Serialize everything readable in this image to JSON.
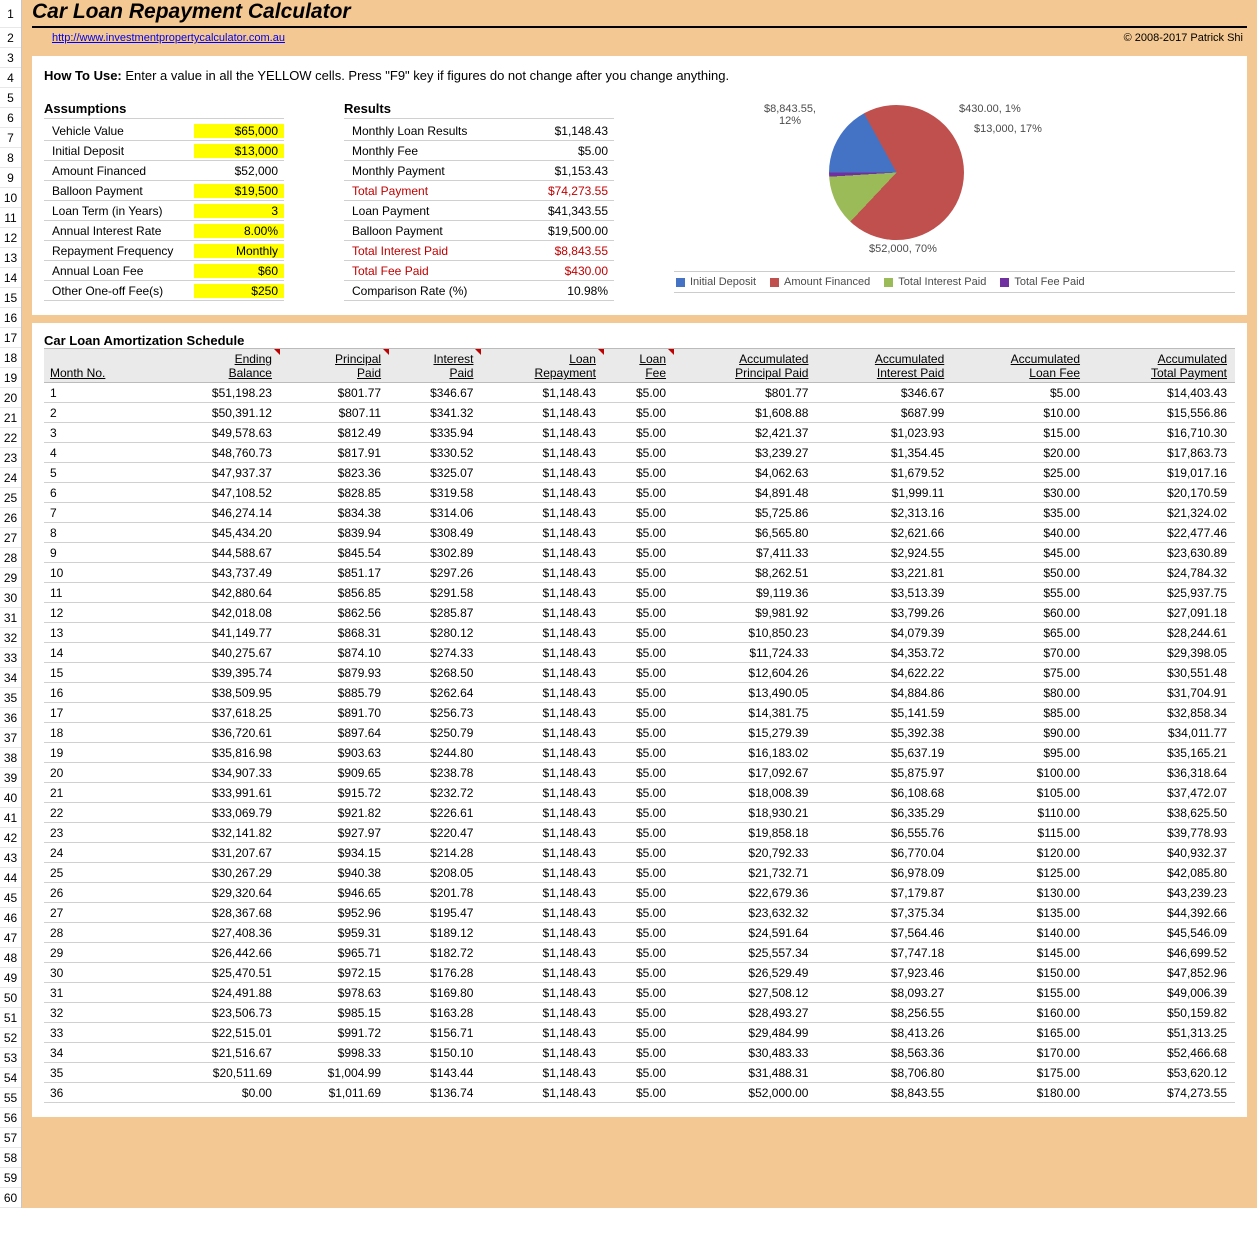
{
  "rownums_start": 1,
  "rownums_end": 60,
  "title": "Car Loan Repayment Calculator",
  "link_text": "http://www.investmentpropertycalculator.com.au",
  "copyright": "© 2008-2017 Patrick Shi",
  "howto_label": "How To Use:",
  "howto_text": " Enter a value in all the YELLOW cells. Press \"F9\" key if figures do not change after you change anything.",
  "assumptions_title": "Assumptions",
  "assumptions": [
    {
      "label": "Vehicle Value",
      "value": "$65,000",
      "yellow": true
    },
    {
      "label": "Initial Deposit",
      "value": "$13,000",
      "yellow": true
    },
    {
      "label": "Amount Financed",
      "value": "$52,000",
      "yellow": false
    },
    {
      "label": "Balloon Payment",
      "value": "$19,500",
      "yellow": true
    },
    {
      "label": "Loan Term (in Years)",
      "value": "3",
      "yellow": true
    },
    {
      "label": "Annual Interest Rate",
      "value": "8.00%",
      "yellow": true
    },
    {
      "label": "Repayment Frequency",
      "value": "Monthly",
      "yellow": true
    },
    {
      "label": "Annual Loan Fee",
      "value": "$60",
      "yellow": true
    },
    {
      "label": "Other One-off Fee(s)",
      "value": "$250",
      "yellow": true
    }
  ],
  "results_title": "Results",
  "results": [
    {
      "label": "Monthly Loan Results",
      "value": "$1,148.43",
      "red": false
    },
    {
      "label": "Monthly Fee",
      "value": "$5.00",
      "red": false
    },
    {
      "label": "Monthly Payment",
      "value": "$1,153.43",
      "red": false
    },
    {
      "label": "Total Payment",
      "value": "$74,273.55",
      "red": true
    },
    {
      "label": "Loan Payment",
      "value": "$41,343.55",
      "red": false
    },
    {
      "label": "Balloon Payment",
      "value": "$19,500.00",
      "red": false
    },
    {
      "label": "Total Interest Paid",
      "value": "$8,843.55",
      "red": true
    },
    {
      "label": "Total Fee Paid",
      "value": "$430.00",
      "red": true
    },
    {
      "label": "Comparison Rate (%)",
      "value": "10.98%",
      "red": false
    }
  ],
  "pie": {
    "slices": [
      {
        "label": "Initial Deposit",
        "value": "$13,000",
        "pct": "17%",
        "color": "#4472c4"
      },
      {
        "label": "Amount Financed",
        "value": "$52,000",
        "pct": "70%",
        "color": "#c0504d"
      },
      {
        "label": "Total Interest Paid",
        "value": "$8,843.55",
        "pct": "12%",
        "color": "#9bbb59"
      },
      {
        "label": "Total Fee Paid",
        "value": "$430.00",
        "pct": "1%",
        "color": "#7030a0"
      }
    ],
    "angles": "#4472c4 0deg 61.2deg, #c0504d 61.2deg 313.2deg, #9bbb59 313.2deg 356.4deg, #7030a0 356.4deg 360deg",
    "legend_title": ""
  },
  "callouts": {
    "c1": {
      "text1": "$430.00, 1%"
    },
    "c2": {
      "text1": "$13,000, 17%"
    },
    "c3": {
      "text1": "$8,843.55,",
      "text2": "12%"
    },
    "c4": {
      "text1": "$52,000, 70%"
    }
  },
  "legend_items": [
    {
      "label": "Initial Deposit",
      "color": "#4472c4"
    },
    {
      "label": "Amount Financed",
      "color": "#c0504d"
    },
    {
      "label": "Total Interest Paid",
      "color": "#9bbb59"
    },
    {
      "label": "Total Fee Paid",
      "color": "#7030a0"
    }
  ],
  "amort_title": "Car Loan Amortization Schedule",
  "amort_headers": [
    {
      "l1": "",
      "l2": "Month No."
    },
    {
      "l1": "Ending",
      "l2": "Balance",
      "tri": true
    },
    {
      "l1": "Principal",
      "l2": "Paid",
      "tri": true
    },
    {
      "l1": "Interest",
      "l2": "Paid",
      "tri": true
    },
    {
      "l1": "Loan",
      "l2": "Repayment",
      "tri": true
    },
    {
      "l1": "Loan",
      "l2": "Fee",
      "tri": true
    },
    {
      "l1": "Accumulated",
      "l2": "Principal Paid"
    },
    {
      "l1": "Accumulated",
      "l2": "Interest Paid"
    },
    {
      "l1": "Accumulated",
      "l2": "Loan Fee"
    },
    {
      "l1": "Accumulated",
      "l2": "Total Payment"
    }
  ],
  "amort_rows": [
    [
      "1",
      "$51,198.23",
      "$801.77",
      "$346.67",
      "$1,148.43",
      "$5.00",
      "$801.77",
      "$346.67",
      "$5.00",
      "$14,403.43"
    ],
    [
      "2",
      "$50,391.12",
      "$807.11",
      "$341.32",
      "$1,148.43",
      "$5.00",
      "$1,608.88",
      "$687.99",
      "$10.00",
      "$15,556.86"
    ],
    [
      "3",
      "$49,578.63",
      "$812.49",
      "$335.94",
      "$1,148.43",
      "$5.00",
      "$2,421.37",
      "$1,023.93",
      "$15.00",
      "$16,710.30"
    ],
    [
      "4",
      "$48,760.73",
      "$817.91",
      "$330.52",
      "$1,148.43",
      "$5.00",
      "$3,239.27",
      "$1,354.45",
      "$20.00",
      "$17,863.73"
    ],
    [
      "5",
      "$47,937.37",
      "$823.36",
      "$325.07",
      "$1,148.43",
      "$5.00",
      "$4,062.63",
      "$1,679.52",
      "$25.00",
      "$19,017.16"
    ],
    [
      "6",
      "$47,108.52",
      "$828.85",
      "$319.58",
      "$1,148.43",
      "$5.00",
      "$4,891.48",
      "$1,999.11",
      "$30.00",
      "$20,170.59"
    ],
    [
      "7",
      "$46,274.14",
      "$834.38",
      "$314.06",
      "$1,148.43",
      "$5.00",
      "$5,725.86",
      "$2,313.16",
      "$35.00",
      "$21,324.02"
    ],
    [
      "8",
      "$45,434.20",
      "$839.94",
      "$308.49",
      "$1,148.43",
      "$5.00",
      "$6,565.80",
      "$2,621.66",
      "$40.00",
      "$22,477.46"
    ],
    [
      "9",
      "$44,588.67",
      "$845.54",
      "$302.89",
      "$1,148.43",
      "$5.00",
      "$7,411.33",
      "$2,924.55",
      "$45.00",
      "$23,630.89"
    ],
    [
      "10",
      "$43,737.49",
      "$851.17",
      "$297.26",
      "$1,148.43",
      "$5.00",
      "$8,262.51",
      "$3,221.81",
      "$50.00",
      "$24,784.32"
    ],
    [
      "11",
      "$42,880.64",
      "$856.85",
      "$291.58",
      "$1,148.43",
      "$5.00",
      "$9,119.36",
      "$3,513.39",
      "$55.00",
      "$25,937.75"
    ],
    [
      "12",
      "$42,018.08",
      "$862.56",
      "$285.87",
      "$1,148.43",
      "$5.00",
      "$9,981.92",
      "$3,799.26",
      "$60.00",
      "$27,091.18"
    ],
    [
      "13",
      "$41,149.77",
      "$868.31",
      "$280.12",
      "$1,148.43",
      "$5.00",
      "$10,850.23",
      "$4,079.39",
      "$65.00",
      "$28,244.61"
    ],
    [
      "14",
      "$40,275.67",
      "$874.10",
      "$274.33",
      "$1,148.43",
      "$5.00",
      "$11,724.33",
      "$4,353.72",
      "$70.00",
      "$29,398.05"
    ],
    [
      "15",
      "$39,395.74",
      "$879.93",
      "$268.50",
      "$1,148.43",
      "$5.00",
      "$12,604.26",
      "$4,622.22",
      "$75.00",
      "$30,551.48"
    ],
    [
      "16",
      "$38,509.95",
      "$885.79",
      "$262.64",
      "$1,148.43",
      "$5.00",
      "$13,490.05",
      "$4,884.86",
      "$80.00",
      "$31,704.91"
    ],
    [
      "17",
      "$37,618.25",
      "$891.70",
      "$256.73",
      "$1,148.43",
      "$5.00",
      "$14,381.75",
      "$5,141.59",
      "$85.00",
      "$32,858.34"
    ],
    [
      "18",
      "$36,720.61",
      "$897.64",
      "$250.79",
      "$1,148.43",
      "$5.00",
      "$15,279.39",
      "$5,392.38",
      "$90.00",
      "$34,011.77"
    ],
    [
      "19",
      "$35,816.98",
      "$903.63",
      "$244.80",
      "$1,148.43",
      "$5.00",
      "$16,183.02",
      "$5,637.19",
      "$95.00",
      "$35,165.21"
    ],
    [
      "20",
      "$34,907.33",
      "$909.65",
      "$238.78",
      "$1,148.43",
      "$5.00",
      "$17,092.67",
      "$5,875.97",
      "$100.00",
      "$36,318.64"
    ],
    [
      "21",
      "$33,991.61",
      "$915.72",
      "$232.72",
      "$1,148.43",
      "$5.00",
      "$18,008.39",
      "$6,108.68",
      "$105.00",
      "$37,472.07"
    ],
    [
      "22",
      "$33,069.79",
      "$921.82",
      "$226.61",
      "$1,148.43",
      "$5.00",
      "$18,930.21",
      "$6,335.29",
      "$110.00",
      "$38,625.50"
    ],
    [
      "23",
      "$32,141.82",
      "$927.97",
      "$220.47",
      "$1,148.43",
      "$5.00",
      "$19,858.18",
      "$6,555.76",
      "$115.00",
      "$39,778.93"
    ],
    [
      "24",
      "$31,207.67",
      "$934.15",
      "$214.28",
      "$1,148.43",
      "$5.00",
      "$20,792.33",
      "$6,770.04",
      "$120.00",
      "$40,932.37"
    ],
    [
      "25",
      "$30,267.29",
      "$940.38",
      "$208.05",
      "$1,148.43",
      "$5.00",
      "$21,732.71",
      "$6,978.09",
      "$125.00",
      "$42,085.80"
    ],
    [
      "26",
      "$29,320.64",
      "$946.65",
      "$201.78",
      "$1,148.43",
      "$5.00",
      "$22,679.36",
      "$7,179.87",
      "$130.00",
      "$43,239.23"
    ],
    [
      "27",
      "$28,367.68",
      "$952.96",
      "$195.47",
      "$1,148.43",
      "$5.00",
      "$23,632.32",
      "$7,375.34",
      "$135.00",
      "$44,392.66"
    ],
    [
      "28",
      "$27,408.36",
      "$959.31",
      "$189.12",
      "$1,148.43",
      "$5.00",
      "$24,591.64",
      "$7,564.46",
      "$140.00",
      "$45,546.09"
    ],
    [
      "29",
      "$26,442.66",
      "$965.71",
      "$182.72",
      "$1,148.43",
      "$5.00",
      "$25,557.34",
      "$7,747.18",
      "$145.00",
      "$46,699.52"
    ],
    [
      "30",
      "$25,470.51",
      "$972.15",
      "$176.28",
      "$1,148.43",
      "$5.00",
      "$26,529.49",
      "$7,923.46",
      "$150.00",
      "$47,852.96"
    ],
    [
      "31",
      "$24,491.88",
      "$978.63",
      "$169.80",
      "$1,148.43",
      "$5.00",
      "$27,508.12",
      "$8,093.27",
      "$155.00",
      "$49,006.39"
    ],
    [
      "32",
      "$23,506.73",
      "$985.15",
      "$163.28",
      "$1,148.43",
      "$5.00",
      "$28,493.27",
      "$8,256.55",
      "$160.00",
      "$50,159.82"
    ],
    [
      "33",
      "$22,515.01",
      "$991.72",
      "$156.71",
      "$1,148.43",
      "$5.00",
      "$29,484.99",
      "$8,413.26",
      "$165.00",
      "$51,313.25"
    ],
    [
      "34",
      "$21,516.67",
      "$998.33",
      "$150.10",
      "$1,148.43",
      "$5.00",
      "$30,483.33",
      "$8,563.36",
      "$170.00",
      "$52,466.68"
    ],
    [
      "35",
      "$20,511.69",
      "$1,004.99",
      "$143.44",
      "$1,148.43",
      "$5.00",
      "$31,488.31",
      "$8,706.80",
      "$175.00",
      "$53,620.12"
    ],
    [
      "36",
      "$0.00",
      "$1,011.69",
      "$136.74",
      "$1,148.43",
      "$5.00",
      "$52,000.00",
      "$8,843.55",
      "$180.00",
      "$74,273.55"
    ]
  ]
}
